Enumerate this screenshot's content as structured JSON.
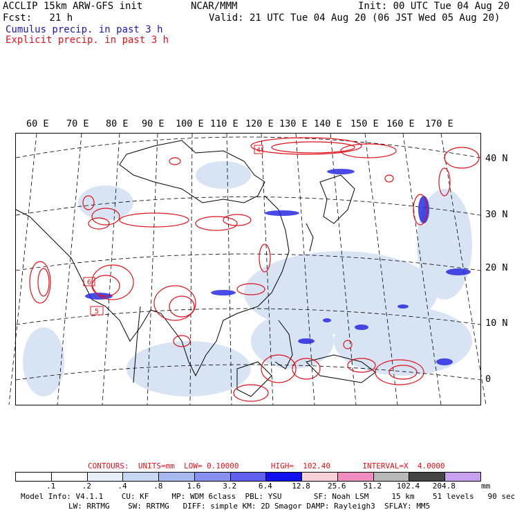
{
  "header": {
    "model_line": "ACCLIP 15km ARW-GFS init",
    "fcst_line": "Fcst:   21 h",
    "center_label": "NCAR/MMM",
    "init_line": "Init: 00 UTC Tue 04 Aug 20",
    "valid_line": "Valid: 21 UTC Tue 04 Aug 20 (06 JST Wed 05 Aug 20)",
    "legend_cumulus": "Cumulus precip. in past 3 h",
    "legend_explicit": "Explicit precip. in past 3 h"
  },
  "map": {
    "lon_labels": [
      "60 E",
      "70 E",
      "80 E",
      "90 E",
      "100 E",
      "110 E",
      "120 E",
      "130 E",
      "140 E",
      "150 E",
      "160 E",
      "170 E"
    ],
    "lat_labels": [
      "40 N",
      "30 N",
      "20 N",
      "10 N",
      "0"
    ],
    "box_labels": [
      "4",
      "6",
      "5"
    ]
  },
  "contours_line": {
    "contours": "CONTOURS:  UNITS=mm  LOW= 0.10000       HIGH=  102.40       INTERVAL=X  4.0000"
  },
  "colorbar": {
    "unit": "mm",
    "tick_labels": [
      ".1",
      ".2",
      ".4",
      ".8",
      "1.6",
      "3.2",
      "6.4",
      "12.8",
      "25.6",
      "51.2",
      "102.4",
      "204.8"
    ],
    "colors": [
      "#ffffff",
      "#ffffff",
      "#e8eef8",
      "#c8d8f0",
      "#a8b8f0",
      "#8890f0",
      "#6060f0",
      "#1010f0",
      "#f8d0d8",
      "#f08cc0",
      "#b8b8b8",
      "#444444",
      "#c8a0f0"
    ]
  },
  "footer": {
    "line1": "Model Info: V4.1.1    CU: KF     MP: WDM 6class  PBL: YSU       SF: Noah LSM     15 km    51 levels   90 sec",
    "line2": "LW: RRTMG    SW: RRTMG   DIFF: simple KM: 2D Smagor DAMP: Rayleigh3  SFLAY: MM5"
  },
  "colors": {
    "explicit_precip": "#e0101a",
    "cumulus_precip": "#2a2ae0",
    "light_precip": "#c8d8f0"
  }
}
